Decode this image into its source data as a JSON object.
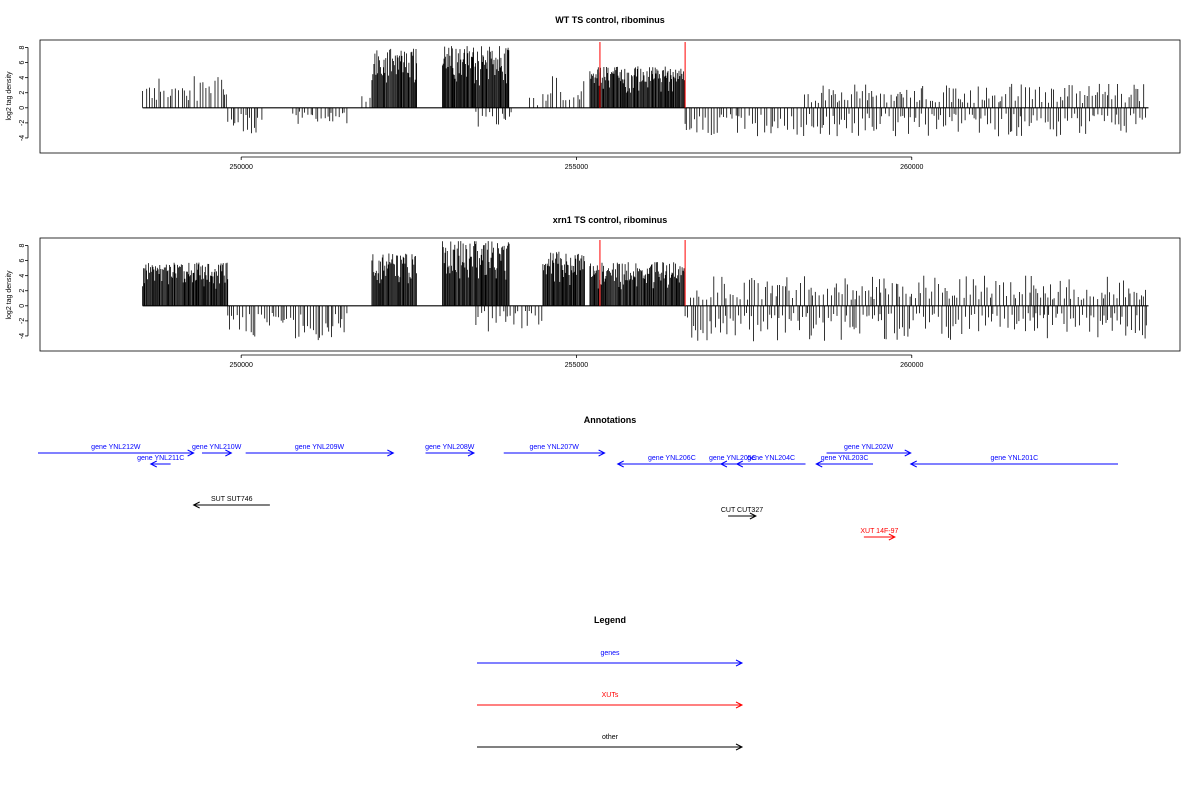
{
  "colors": {
    "gene": "#0000ff",
    "xut": "#ff0000",
    "other": "#000000",
    "marker": "#ff0000",
    "bars": "#000000"
  },
  "chart_data": [
    {
      "type": "bar",
      "title": "WT TS control, ribominus",
      "ylabel": "log2 tag density",
      "ylim": [
        -6,
        9
      ],
      "yticks": [
        -4,
        -2,
        0,
        2,
        4,
        6,
        8
      ],
      "xlim": [
        247000,
        264000
      ],
      "xticks": [
        250000,
        255000,
        260000
      ],
      "xtick_labels": [
        "250000",
        "255000",
        "260000"
      ],
      "data_range": [
        248530,
        263530
      ],
      "markers": [
        255350,
        256620
      ],
      "segments": [
        {
          "start": 248530,
          "end": 249810,
          "strand": "+",
          "max": 4.2
        },
        {
          "start": 249800,
          "end": 250350,
          "strand": "-",
          "max": 3.5
        },
        {
          "start": 250770,
          "end": 251610,
          "strand": "-",
          "max": 2.2
        },
        {
          "start": 251800,
          "end": 251950,
          "strand": "+",
          "max": 1.8
        },
        {
          "start": 251950,
          "end": 252620,
          "strand": "+",
          "max": 8.0
        },
        {
          "start": 253000,
          "end": 254000,
          "strand": "+",
          "max": 8.2
        },
        {
          "start": 253500,
          "end": 254050,
          "strand": "-",
          "max": 2.5
        },
        {
          "start": 254300,
          "end": 254450,
          "strand": "+",
          "max": 1.6
        },
        {
          "start": 254500,
          "end": 255130,
          "strand": "+",
          "max": 4.5
        },
        {
          "start": 255200,
          "end": 256620,
          "strand": "+",
          "max": 5.5
        },
        {
          "start": 256620,
          "end": 263520,
          "strand": "-",
          "max": 3.8
        },
        {
          "start": 258400,
          "end": 263500,
          "strand": "+",
          "max": 3.2
        }
      ]
    },
    {
      "type": "bar",
      "title": "xrn1 TS control, ribominus",
      "ylabel": "log2 tag density",
      "ylim": [
        -6,
        9
      ],
      "yticks": [
        -4,
        -2,
        0,
        2,
        4,
        6,
        8
      ],
      "xlim": [
        247000,
        264000
      ],
      "xticks": [
        250000,
        255000,
        260000
      ],
      "xtick_labels": [
        "250000",
        "255000",
        "260000"
      ],
      "data_range": [
        248530,
        263530
      ],
      "markers": [
        255350,
        256620
      ],
      "segments": [
        {
          "start": 248530,
          "end": 249810,
          "strand": "+",
          "max": 5.8
        },
        {
          "start": 249800,
          "end": 251610,
          "strand": "-",
          "max": 4.8
        },
        {
          "start": 251950,
          "end": 252620,
          "strand": "+",
          "max": 7.0
        },
        {
          "start": 253000,
          "end": 254000,
          "strand": "+",
          "max": 8.6
        },
        {
          "start": 253500,
          "end": 254500,
          "strand": "-",
          "max": 3.4
        },
        {
          "start": 254500,
          "end": 255130,
          "strand": "+",
          "max": 7.2
        },
        {
          "start": 255200,
          "end": 256620,
          "strand": "+",
          "max": 5.8
        },
        {
          "start": 256620,
          "end": 263520,
          "strand": "-",
          "max": 4.8
        },
        {
          "start": 256700,
          "end": 263500,
          "strand": "+",
          "max": 4.0
        }
      ]
    }
  ],
  "annotations": {
    "title": "Annotations",
    "features": [
      {
        "label": "gene YNL212W",
        "type": "gene",
        "start": 246800,
        "end": 250720,
        "strand": "+",
        "row": 0
      },
      {
        "label": "gene YNL211C",
        "type": "gene",
        "start": 249640,
        "end": 250140,
        "strand": "-",
        "row": 1
      },
      {
        "label": "gene YNL210W",
        "type": "gene",
        "start": 250930,
        "end": 251670,
        "strand": "+",
        "row": 0
      },
      {
        "label": "gene YNL209W",
        "type": "gene",
        "start": 252030,
        "end": 255750,
        "strand": "+",
        "row": 0
      },
      {
        "label": "gene YNL208W",
        "type": "gene",
        "start": 256560,
        "end": 257780,
        "strand": "+",
        "row": 0
      },
      {
        "label": "gene YNL207W",
        "type": "gene",
        "start": 258530,
        "end": 261070,
        "strand": "+",
        "row": 0
      },
      {
        "label": "gene YNL206C",
        "type": "gene",
        "start": 261400,
        "end": 264130,
        "strand": "-",
        "row": 1
      },
      {
        "label": "gene YNL205C",
        "type": "gene",
        "start": 264000,
        "end": 264600,
        "strand": "-",
        "row": 1
      },
      {
        "label": "gene YNL204C",
        "type": "gene",
        "start": 264400,
        "end": 266130,
        "strand": "-",
        "row": 1
      },
      {
        "label": "gene YNL203C",
        "type": "gene",
        "start": 266400,
        "end": 267830,
        "strand": "-",
        "row": 1
      },
      {
        "label": "gene YNL202W",
        "type": "gene",
        "start": 266660,
        "end": 268780,
        "strand": "+",
        "row": 0
      },
      {
        "label": "gene YNL201C",
        "type": "gene",
        "start": 268780,
        "end": 274000,
        "strand": "-",
        "row": 1
      },
      {
        "label": "SUT SUT746",
        "type": "other",
        "start": 250720,
        "end": 252640,
        "strand": "-",
        "row": 2
      },
      {
        "label": "CUT CUT327",
        "type": "other",
        "start": 264180,
        "end": 264880,
        "strand": "+",
        "row": 3
      },
      {
        "label": "XUT 14F-97",
        "type": "xut",
        "start": 267600,
        "end": 268380,
        "strand": "+",
        "row": 4
      }
    ]
  },
  "legend": {
    "title": "Legend",
    "entries": [
      {
        "label": "genes",
        "type": "gene"
      },
      {
        "label": "XUTs",
        "type": "xut"
      },
      {
        "label": "other",
        "type": "other"
      }
    ]
  }
}
